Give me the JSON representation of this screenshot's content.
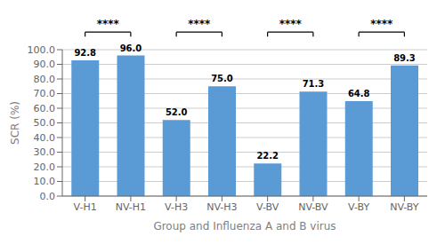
{
  "chart_data": {
    "type": "bar",
    "categories": [
      "V-H1",
      "NV-H1",
      "V-H3",
      "NV-H3",
      "V-BV",
      "NV-BV",
      "V-BY",
      "NV-BY"
    ],
    "values": [
      92.8,
      96.0,
      52.0,
      75.0,
      22.2,
      71.3,
      64.8,
      89.3
    ],
    "value_labels": [
      "92.8",
      "96.0",
      "52.0",
      "75.0",
      "22.2",
      "71.3",
      "64.8",
      "89.3"
    ],
    "data_labels": true,
    "color": "#5b9bd5",
    "xlabel": "Group and Influenza A and B virus",
    "ylabel": "SCR (%)",
    "ylim": [
      0,
      100
    ],
    "yticks": [
      {
        "value": 0,
        "label": "0.0"
      },
      {
        "value": 10,
        "label": "10.0"
      },
      {
        "value": 20,
        "label": "20.0"
      },
      {
        "value": 30,
        "label": "30.0"
      },
      {
        "value": 40,
        "label": "40.0"
      },
      {
        "value": 50,
        "label": "50.0"
      },
      {
        "value": 60,
        "label": "60.0"
      },
      {
        "value": 70,
        "label": "70.0"
      },
      {
        "value": 80,
        "label": "80.0"
      },
      {
        "value": 90,
        "label": "90.0"
      },
      {
        "value": 100,
        "label": "100.0"
      }
    ],
    "grid": true,
    "annotations": [
      {
        "text": "****",
        "between": [
          "V-H1",
          "NV-H1"
        ]
      },
      {
        "text": "****",
        "between": [
          "V-H3",
          "NV-H3"
        ]
      },
      {
        "text": "****",
        "between": [
          "V-BV",
          "NV-BV"
        ]
      },
      {
        "text": "****",
        "between": [
          "V-BY",
          "NV-BY"
        ]
      }
    ]
  }
}
